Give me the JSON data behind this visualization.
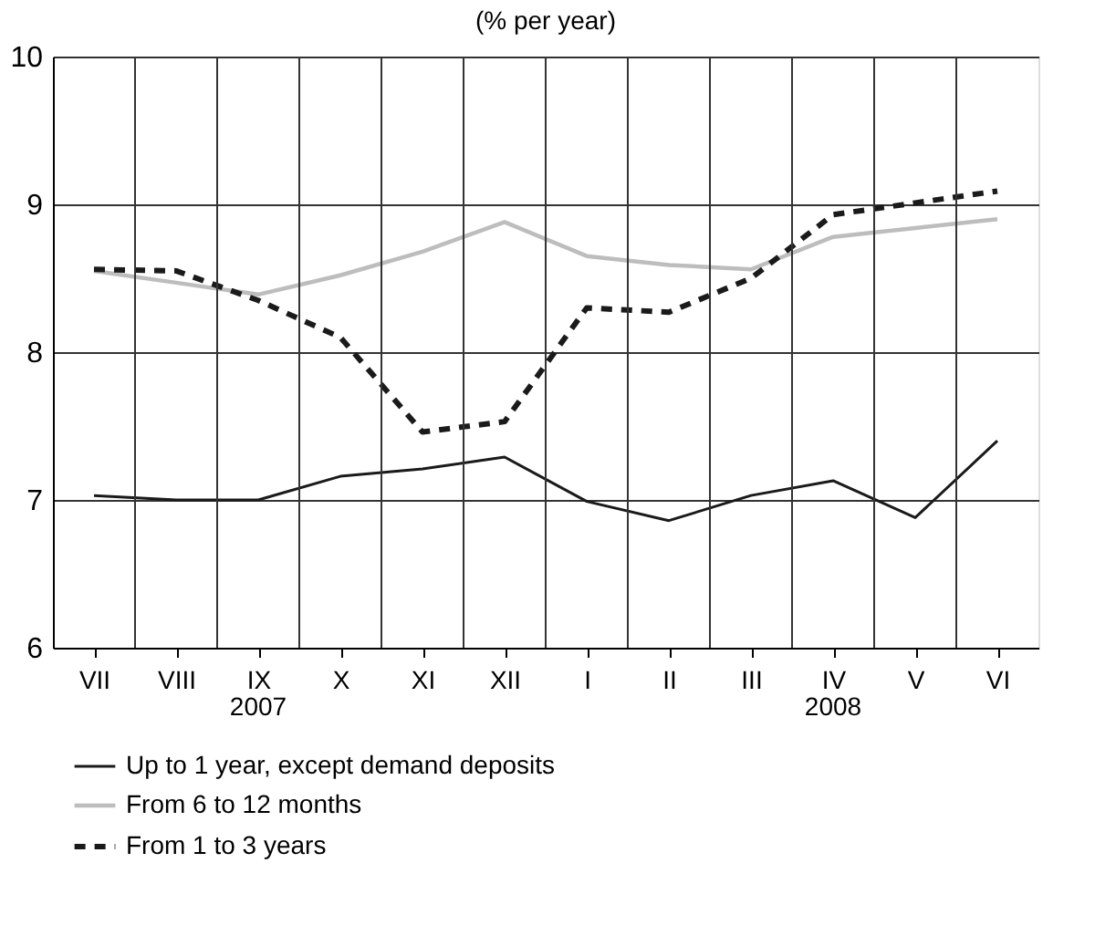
{
  "chart_data": {
    "type": "line",
    "title": "(% per year)",
    "categories": [
      "VII",
      "VIII",
      "IX",
      "X",
      "XI",
      "XII",
      "I",
      "II",
      "III",
      "IV",
      "V",
      "VI"
    ],
    "series": [
      {
        "name": "Up to 1 year, except demand deposits",
        "color": "#1a1a1a",
        "line_style": "solid",
        "values": [
          7.03,
          7.0,
          7.0,
          7.16,
          7.21,
          7.29,
          6.99,
          6.86,
          7.03,
          7.13,
          6.88,
          7.4
        ]
      },
      {
        "name": "From 6 to 12 months",
        "color": "#bdbdbd",
        "line_style": "solid",
        "values": [
          8.55,
          8.47,
          8.39,
          8.52,
          8.68,
          8.88,
          8.65,
          8.59,
          8.56,
          8.78,
          8.84,
          8.9
        ]
      },
      {
        "name": "From 1 to 3 years",
        "color": "#1a1a1a",
        "line_style": "dashed",
        "values": [
          8.56,
          8.55,
          8.35,
          8.1,
          7.46,
          7.53,
          8.3,
          8.27,
          8.5,
          8.93,
          9.01,
          9.09
        ]
      }
    ],
    "ylim": [
      6,
      10
    ],
    "yticks": [
      6,
      7,
      8,
      9,
      10
    ],
    "grid": true,
    "legend": "bottom",
    "marker": "none",
    "annotations": [
      "2007",
      "2008"
    ]
  }
}
